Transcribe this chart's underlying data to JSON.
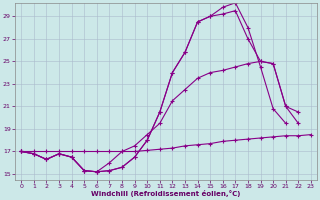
{
  "xlabel": "Windchill (Refroidissement éolien,°C)",
  "background_color": "#cce8e8",
  "line_color": "#880088",
  "grid_color": "#aabbcc",
  "xlim": [
    -0.5,
    23.5
  ],
  "ylim": [
    14.5,
    30.2
  ],
  "yticks": [
    15,
    17,
    19,
    21,
    23,
    25,
    27,
    29
  ],
  "xticks": [
    0,
    1,
    2,
    3,
    4,
    5,
    6,
    7,
    8,
    9,
    10,
    11,
    12,
    13,
    14,
    15,
    16,
    17,
    18,
    19,
    20,
    21,
    22,
    23
  ],
  "series": [
    {
      "x": [
        0,
        1,
        2,
        3,
        4,
        5,
        6,
        7,
        8,
        9,
        10,
        11,
        12,
        13,
        14,
        15,
        16,
        17,
        18,
        19,
        20,
        21
      ],
      "y": [
        17.0,
        16.8,
        16.3,
        16.8,
        16.5,
        15.3,
        15.2,
        15.3,
        15.6,
        16.5,
        18.0,
        20.5,
        24.0,
        25.8,
        28.5,
        29.0,
        29.8,
        30.2,
        28.0,
        24.5,
        20.8,
        19.5
      ]
    },
    {
      "x": [
        0,
        1,
        2,
        3,
        4,
        5,
        6,
        7,
        8,
        9,
        10,
        11,
        12,
        13,
        14,
        15,
        16,
        17,
        18,
        19,
        20,
        21,
        22,
        23
      ],
      "y": [
        17.0,
        16.8,
        16.3,
        16.8,
        16.5,
        15.3,
        15.2,
        15.3,
        15.6,
        16.5,
        18.0,
        20.5,
        24.0,
        25.8,
        28.5,
        29.0,
        29.2,
        29.5,
        27.0,
        25.0,
        24.8,
        21.0,
        19.5,
        null
      ]
    },
    {
      "x": [
        0,
        1,
        2,
        3,
        4,
        5,
        6,
        7,
        8,
        9,
        10,
        11,
        12,
        13,
        14,
        15,
        16,
        17,
        18,
        19,
        20,
        21,
        22,
        23
      ],
      "y": [
        17.0,
        17.0,
        17.0,
        17.0,
        17.0,
        17.0,
        17.0,
        17.0,
        17.0,
        17.0,
        17.1,
        17.2,
        17.3,
        17.5,
        17.6,
        17.7,
        17.9,
        18.0,
        18.1,
        18.2,
        18.3,
        18.4,
        18.4,
        18.5
      ]
    },
    {
      "x": [
        0,
        1,
        2,
        3,
        4,
        5,
        6,
        7,
        8,
        9,
        10,
        11,
        12,
        13,
        14,
        15,
        16,
        17,
        18,
        19,
        20,
        21,
        22,
        23
      ],
      "y": [
        17.0,
        16.8,
        16.3,
        16.8,
        16.5,
        15.3,
        15.2,
        16.0,
        17.0,
        17.5,
        18.5,
        19.5,
        21.5,
        22.5,
        23.5,
        24.0,
        24.2,
        24.5,
        24.8,
        25.0,
        24.8,
        21.0,
        20.5,
        null
      ]
    }
  ]
}
